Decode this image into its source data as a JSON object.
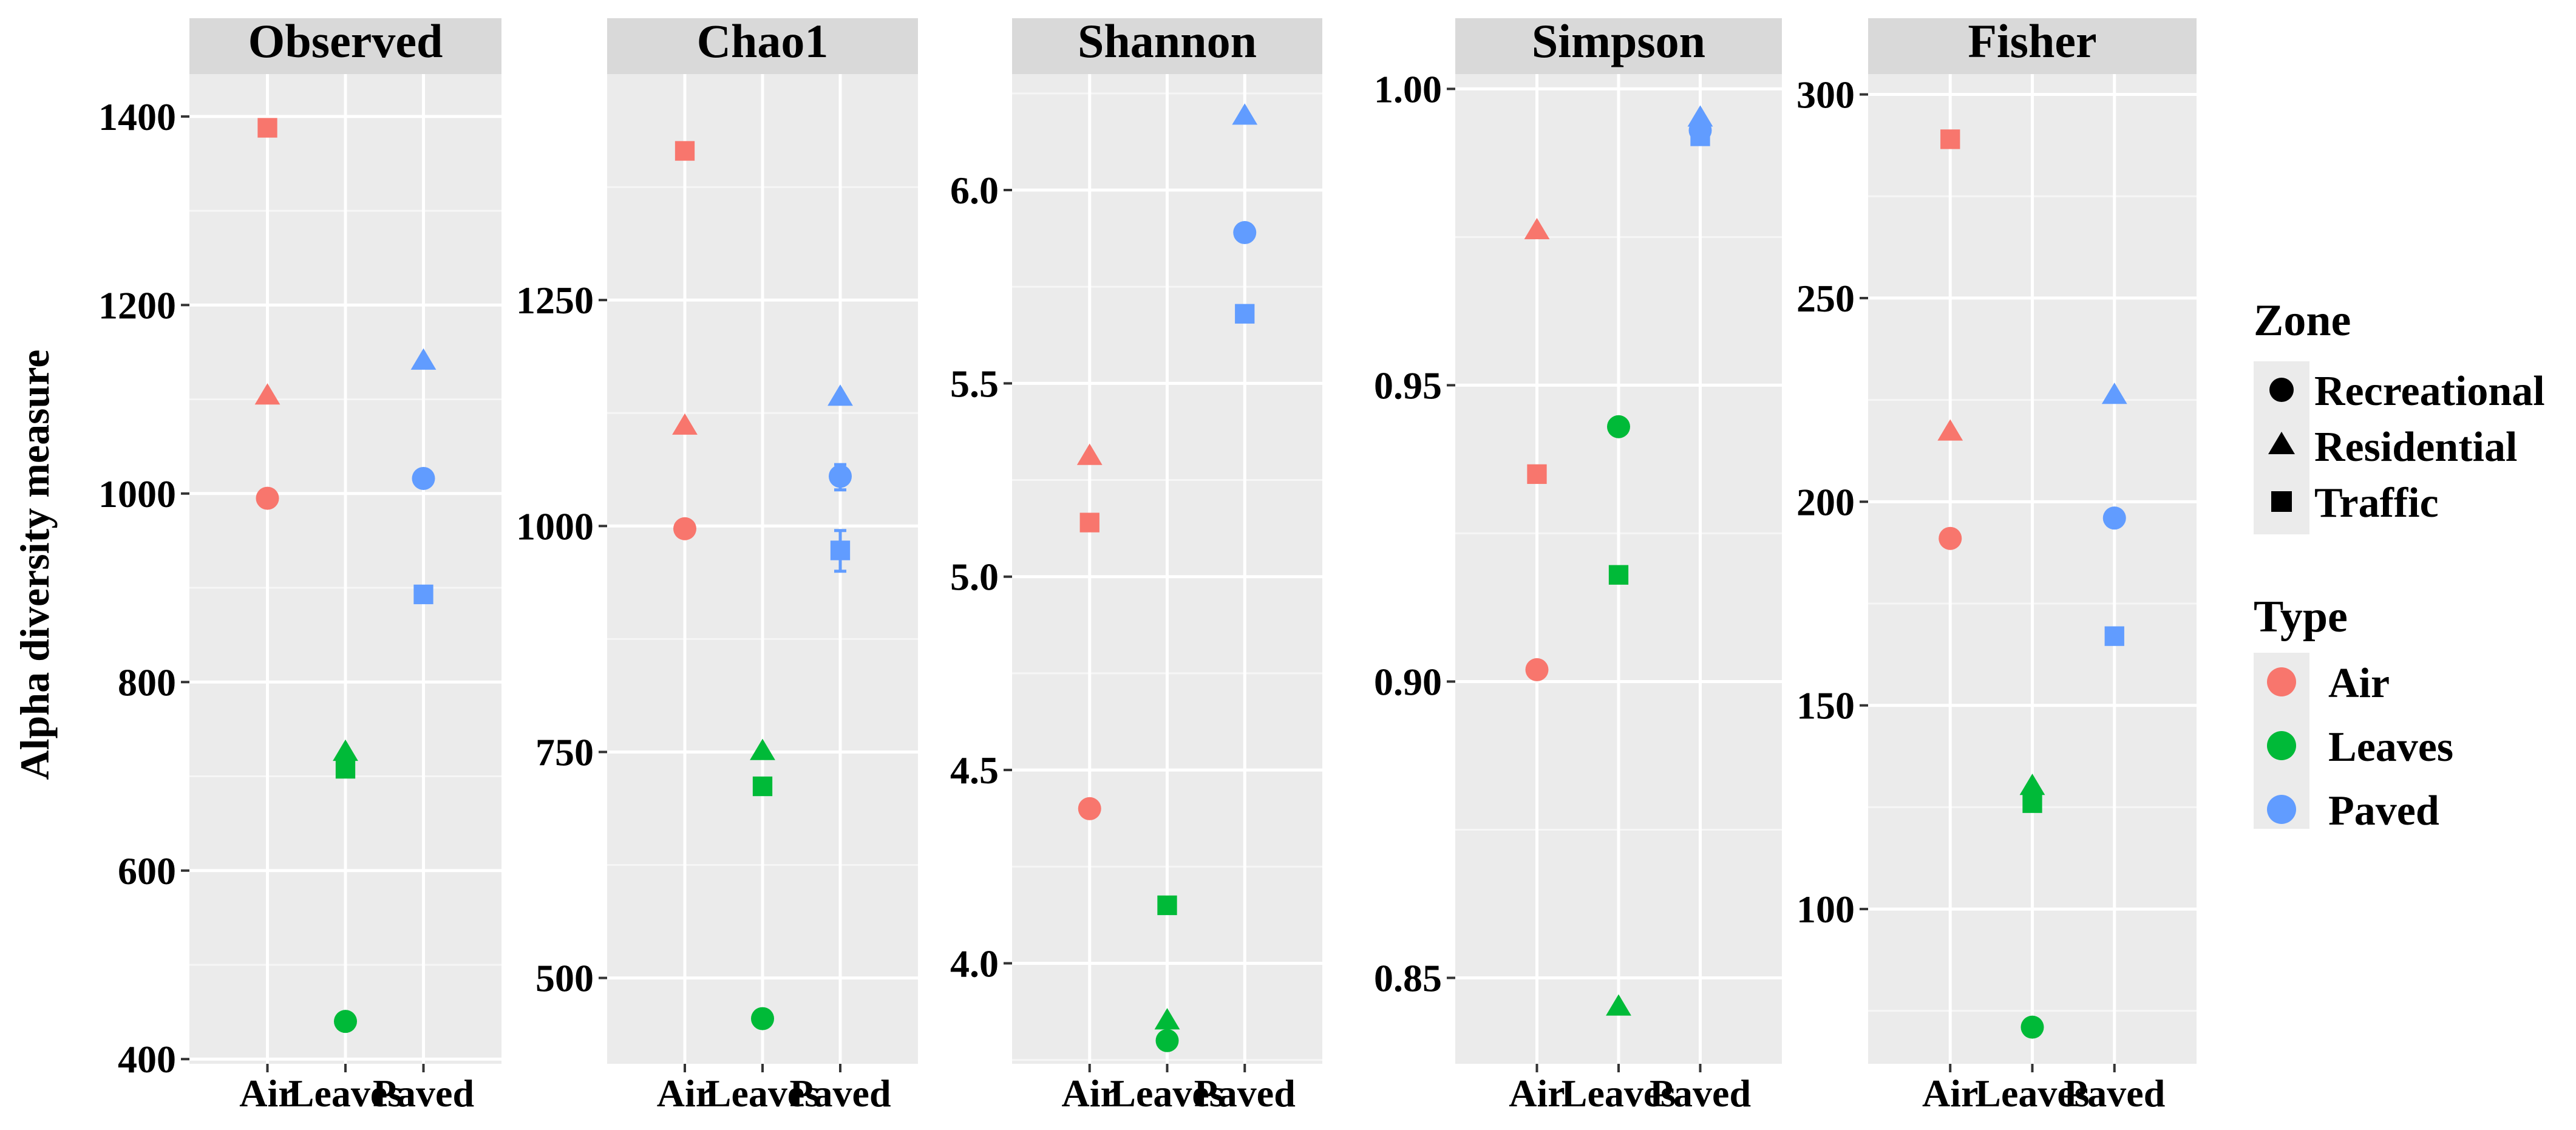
{
  "chart_data": {
    "type": "scatter",
    "ylabel": "Alpha diversity measure",
    "xlabel": "",
    "categories": [
      "Air",
      "Leaves",
      "Paved"
    ],
    "colors": {
      "Air": "#F8766D",
      "Leaves": "#00BA38",
      "Paved": "#619CFF"
    },
    "shapes": {
      "Recreational": "circle",
      "Residential": "triangle",
      "Traffic": "square"
    },
    "legend": {
      "position": "right",
      "zone_title": "Zone",
      "zone_items": [
        "Recreational",
        "Residential",
        "Traffic"
      ],
      "type_title": "Type",
      "type_items": [
        "Air",
        "Leaves",
        "Paved"
      ]
    },
    "panels": [
      {
        "title": "Observed",
        "ylim": [
          395,
          1445
        ],
        "ticks": [
          400,
          600,
          800,
          1000,
          1200,
          1400
        ],
        "tick_labels": [
          "400",
          "600",
          "800",
          "1000",
          "1200",
          "1400"
        ],
        "points": [
          {
            "type": "Air",
            "zone": "Traffic",
            "value": 1388
          },
          {
            "type": "Air",
            "zone": "Residential",
            "value": 1103
          },
          {
            "type": "Air",
            "zone": "Recreational",
            "value": 995
          },
          {
            "type": "Leaves",
            "zone": "Residential",
            "value": 725
          },
          {
            "type": "Leaves",
            "zone": "Traffic",
            "value": 708
          },
          {
            "type": "Leaves",
            "zone": "Recreational",
            "value": 440
          },
          {
            "type": "Paved",
            "zone": "Residential",
            "value": 1140
          },
          {
            "type": "Paved",
            "zone": "Recreational",
            "value": 1016
          },
          {
            "type": "Paved",
            "zone": "Traffic",
            "value": 893
          }
        ]
      },
      {
        "title": "Chao1",
        "ylim": [
          405,
          1500
        ],
        "ticks": [
          500,
          750,
          1000,
          1250
        ],
        "tick_labels": [
          "500",
          "750",
          "1000",
          "1250"
        ],
        "points": [
          {
            "type": "Air",
            "zone": "Traffic",
            "value": 1415
          },
          {
            "type": "Air",
            "zone": "Residential",
            "value": 1110
          },
          {
            "type": "Air",
            "zone": "Recreational",
            "value": 997
          },
          {
            "type": "Leaves",
            "zone": "Residential",
            "value": 750
          },
          {
            "type": "Leaves",
            "zone": "Traffic",
            "value": 712
          },
          {
            "type": "Leaves",
            "zone": "Recreational",
            "value": 455
          },
          {
            "type": "Paved",
            "zone": "Residential",
            "value": 1142
          },
          {
            "type": "Paved",
            "zone": "Recreational",
            "value": 1055,
            "err": [
              1040,
              1068
            ]
          },
          {
            "type": "Paved",
            "zone": "Traffic",
            "value": 973,
            "err": [
              950,
              995
            ]
          }
        ]
      },
      {
        "title": "Shannon",
        "ylim": [
          3.74,
          6.3
        ],
        "ticks": [
          4.0,
          4.5,
          5.0,
          5.5,
          6.0
        ],
        "tick_labels": [
          "4.0",
          "4.5",
          "5.0",
          "5.5",
          "6.0"
        ],
        "points": [
          {
            "type": "Air",
            "zone": "Residential",
            "value": 5.31
          },
          {
            "type": "Air",
            "zone": "Traffic",
            "value": 5.14
          },
          {
            "type": "Air",
            "zone": "Recreational",
            "value": 4.4
          },
          {
            "type": "Leaves",
            "zone": "Traffic",
            "value": 4.15
          },
          {
            "type": "Leaves",
            "zone": "Residential",
            "value": 3.85
          },
          {
            "type": "Leaves",
            "zone": "Recreational",
            "value": 3.8
          },
          {
            "type": "Paved",
            "zone": "Residential",
            "value": 6.19
          },
          {
            "type": "Paved",
            "zone": "Recreational",
            "value": 5.89
          },
          {
            "type": "Paved",
            "zone": "Traffic",
            "value": 5.68
          }
        ]
      },
      {
        "title": "Simpson",
        "ylim": [
          0.8355,
          1.0025
        ],
        "ticks": [
          0.85,
          0.9,
          0.95,
          1.0
        ],
        "tick_labels": [
          "0.85",
          "0.90",
          "0.95",
          "1.00"
        ],
        "points": [
          {
            "type": "Air",
            "zone": "Residential",
            "value": 0.976
          },
          {
            "type": "Air",
            "zone": "Traffic",
            "value": 0.935
          },
          {
            "type": "Air",
            "zone": "Recreational",
            "value": 0.902
          },
          {
            "type": "Leaves",
            "zone": "Recreational",
            "value": 0.943
          },
          {
            "type": "Leaves",
            "zone": "Traffic",
            "value": 0.918
          },
          {
            "type": "Leaves",
            "zone": "Residential",
            "value": 0.845
          },
          {
            "type": "Paved",
            "zone": "Residential",
            "value": 0.995
          },
          {
            "type": "Paved",
            "zone": "Traffic",
            "value": 0.992
          },
          {
            "type": "Paved",
            "zone": "Recreational",
            "value": 0.993
          }
        ]
      },
      {
        "title": "Fisher",
        "ylim": [
          62,
          305
        ],
        "ticks": [
          100,
          150,
          200,
          250,
          300
        ],
        "tick_labels": [
          "100",
          "150",
          "200",
          "250",
          "300"
        ],
        "points": [
          {
            "type": "Air",
            "zone": "Traffic",
            "value": 289
          },
          {
            "type": "Air",
            "zone": "Residential",
            "value": 217
          },
          {
            "type": "Air",
            "zone": "Recreational",
            "value": 191
          },
          {
            "type": "Leaves",
            "zone": "Residential",
            "value": 130
          },
          {
            "type": "Leaves",
            "zone": "Traffic",
            "value": 126
          },
          {
            "type": "Leaves",
            "zone": "Recreational",
            "value": 71
          },
          {
            "type": "Paved",
            "zone": "Residential",
            "value": 226
          },
          {
            "type": "Paved",
            "zone": "Recreational",
            "value": 196
          },
          {
            "type": "Paved",
            "zone": "Traffic",
            "value": 167
          }
        ]
      }
    ]
  }
}
